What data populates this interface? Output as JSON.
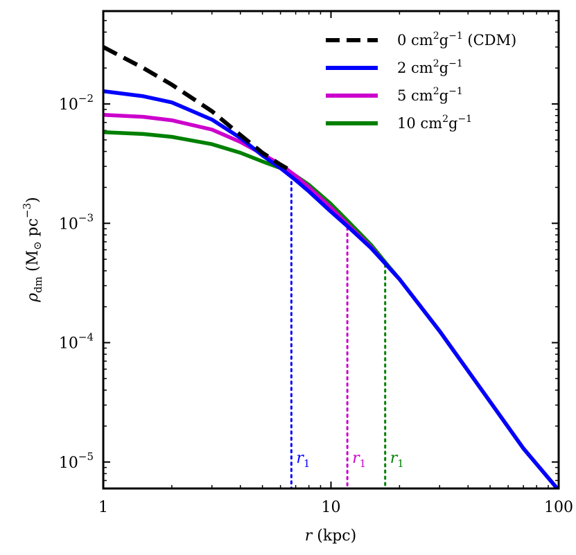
{
  "chart_data": {
    "type": "line",
    "xscale": "log",
    "yscale": "log",
    "xlim": [
      1,
      100
    ],
    "ylim": [
      6e-06,
      0.06
    ],
    "xlabel": "r (kpc)",
    "ylabel": "ρ_dm (M⊙ pc⁻³)",
    "xticks": [
      {
        "value": 1,
        "label": "1"
      },
      {
        "value": 10,
        "label": "10"
      },
      {
        "value": 100,
        "label": "100"
      }
    ],
    "yticks": [
      {
        "value": 1e-05,
        "base": "10",
        "exp": "−5"
      },
      {
        "value": 0.0001,
        "base": "10",
        "exp": "−4"
      },
      {
        "value": 0.001,
        "base": "10",
        "exp": "−3"
      },
      {
        "value": 0.01,
        "base": "10",
        "exp": "−2"
      }
    ],
    "legend_position": "top-right",
    "series": [
      {
        "name": "0 cm²g⁻¹ (CDM)",
        "legend": {
          "num": "0 cm",
          "sup1": "2",
          "mid": "g",
          "sup2": "−1",
          "suffix": " (CDM)"
        },
        "color": "#000000",
        "dash": "dashed",
        "x": [
          1,
          1.5,
          2,
          3,
          4,
          5,
          6,
          6.8
        ],
        "y": [
          0.03,
          0.02,
          0.0145,
          0.0087,
          0.0055,
          0.0039,
          0.0031,
          0.0027
        ]
      },
      {
        "name": "2 cm²g⁻¹",
        "legend": {
          "num": "2 cm",
          "sup1": "2",
          "mid": "g",
          "sup2": "−1",
          "suffix": ""
        },
        "color": "#0000ff",
        "dash": "solid",
        "x": [
          1,
          1.5,
          2,
          3,
          4,
          5,
          6,
          7,
          8,
          10,
          12,
          15,
          17.5,
          20,
          30,
          40,
          50,
          70,
          100
        ],
        "y": [
          0.0128,
          0.0116,
          0.0103,
          0.0074,
          0.0052,
          0.0037,
          0.0029,
          0.0023,
          0.00185,
          0.00125,
          0.00092,
          0.00062,
          0.00045,
          0.00034,
          0.000125,
          5.8e-05,
          3.2e-05,
          1.3e-05,
          5.8e-06
        ]
      },
      {
        "name": "5 cm²g⁻¹",
        "legend": {
          "num": "5 cm",
          "sup1": "2",
          "mid": "g",
          "sup2": "−1",
          "suffix": ""
        },
        "color": "#cc00cc",
        "dash": "solid",
        "x": [
          1,
          1.5,
          2,
          3,
          4,
          5,
          6,
          7,
          8,
          10,
          12,
          15,
          17.5,
          20,
          30,
          40,
          50,
          70,
          100
        ],
        "y": [
          0.0081,
          0.0078,
          0.0073,
          0.0061,
          0.0048,
          0.0038,
          0.0031,
          0.0025,
          0.002,
          0.00135,
          0.00095,
          0.00063,
          0.00045,
          0.00034,
          0.000125,
          5.8e-05,
          3.2e-05,
          1.3e-05,
          5.8e-06
        ]
      },
      {
        "name": "10 cm²g⁻¹",
        "legend": {
          "num": "10 cm",
          "sup1": "2",
          "mid": "g",
          "sup2": "−1",
          "suffix": ""
        },
        "color": "#008000",
        "dash": "solid",
        "x": [
          1,
          1.5,
          2,
          3,
          4,
          5,
          6,
          7,
          8,
          10,
          12,
          15,
          17.5,
          20,
          30,
          40,
          50,
          70,
          100
        ],
        "y": [
          0.0058,
          0.0056,
          0.0053,
          0.0046,
          0.0039,
          0.0033,
          0.0029,
          0.0025,
          0.0021,
          0.00145,
          0.00102,
          0.00066,
          0.00046,
          0.00034,
          0.000125,
          5.8e-05,
          3.2e-05,
          1.3e-05,
          5.8e-06
        ]
      }
    ],
    "annotations": [
      {
        "label": "r",
        "sub": "1",
        "x": 6.7,
        "y_top": 0.0025,
        "color": "#0000ff"
      },
      {
        "label": "r",
        "sub": "1",
        "x": 11.8,
        "y_top": 0.00092,
        "color": "#cc00cc"
      },
      {
        "label": "r",
        "sub": "1",
        "x": 17.3,
        "y_top": 0.00045,
        "color": "#008000"
      }
    ]
  }
}
